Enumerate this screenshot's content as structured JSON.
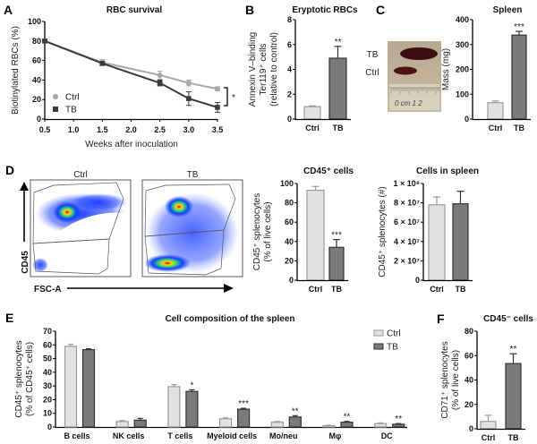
{
  "panels": {
    "a": "A",
    "b": "B",
    "c": "C",
    "d": "D",
    "e": "E",
    "f": "F"
  },
  "photo": {
    "label_tb": "TB",
    "label_ctrl": "Ctrl",
    "ruler_text": "0 cm 1 2"
  },
  "flow": {
    "title_ctrl": "Ctrl",
    "title_tb": "TB",
    "y_axis": "CD45",
    "x_axis": "FSC-A"
  },
  "colors": {
    "ctrl_fill": "#e2e2e2",
    "ctrl_stroke": "#9a9a9a",
    "tb_fill": "#7a7a7a",
    "tb_stroke": "#333333"
  },
  "chart_data": [
    {
      "id": "A",
      "type": "line",
      "title": "RBC survival",
      "xlabel": "Weeks after inoculation",
      "ylabel": "Biotinylated RBCs (%)",
      "xlim": [
        0.5,
        3.5
      ],
      "ylim": [
        0,
        100
      ],
      "xticks": [
        "0.5",
        "1.0",
        "1.5",
        "2.0",
        "2.5",
        "3.0",
        "3.5"
      ],
      "yticks": [
        "0",
        "20",
        "40",
        "60",
        "80",
        "100"
      ],
      "legend": "bottom-left",
      "annotation": "*",
      "x": [
        0.5,
        1.5,
        2.5,
        3.0,
        3.5
      ],
      "series": [
        {
          "name": "Ctrl",
          "values": [
            80,
            58,
            45,
            37,
            31
          ],
          "errors": [
            2,
            3,
            4,
            3,
            2
          ],
          "color": "#a8a8a8"
        },
        {
          "name": "TB",
          "values": [
            80,
            57,
            37,
            21,
            12
          ],
          "errors": [
            2,
            2,
            3,
            7,
            5
          ],
          "color": "#3a3a3a"
        }
      ]
    },
    {
      "id": "B",
      "type": "bar",
      "title": "Eryptotic RBCs",
      "ylabel": [
        "Annexin V–binding",
        "Ter119⁺ cells",
        "(relative to control)"
      ],
      "ylim": [
        0,
        8
      ],
      "yticks": [
        "0",
        "2",
        "4",
        "6",
        "8"
      ],
      "categories": [
        "Ctrl",
        "TB"
      ],
      "values": [
        1.0,
        4.9
      ],
      "errors": [
        0.06,
        0.95
      ],
      "significance": [
        "",
        "**"
      ]
    },
    {
      "id": "C",
      "type": "bar",
      "title": "Spleen",
      "ylabel": [
        "Mass (mg)"
      ],
      "ylim": [
        0,
        400
      ],
      "yticks": [
        "0",
        "100",
        "200",
        "300",
        "400"
      ],
      "categories": [
        "Ctrl",
        "TB"
      ],
      "values": [
        66,
        338
      ],
      "errors": [
        7,
        15
      ],
      "significance": [
        "",
        "***"
      ]
    },
    {
      "id": "D1",
      "type": "bar",
      "title": "CD45⁺ cells",
      "ylabel": [
        "CD45⁺ splenocytes",
        "(% of live cells)"
      ],
      "ylim": [
        0,
        100
      ],
      "yticks": [
        "0",
        "20",
        "40",
        "60",
        "80",
        "100"
      ],
      "categories": [
        "Ctrl",
        "TB"
      ],
      "values": [
        93,
        34
      ],
      "errors": [
        4,
        8
      ],
      "significance": [
        "",
        "***"
      ]
    },
    {
      "id": "D2",
      "type": "bar",
      "title": "Cells in spleen",
      "ylabel": [
        "CD45⁺ splenocytes (#)"
      ],
      "ylim": [
        0,
        100000000
      ],
      "yticks": [
        "0",
        "2 × 10⁷",
        "4 × 10⁷",
        "6 × 10⁷",
        "8 × 10⁷",
        "1 × 10⁸"
      ],
      "categories": [
        "Ctrl",
        "TB"
      ],
      "values": [
        78000000,
        79000000
      ],
      "errors": [
        8000000,
        13000000
      ],
      "significance": [
        "",
        ""
      ]
    },
    {
      "id": "E",
      "type": "bar",
      "title": "Cell composition of the spleen",
      "ylabel": [
        "CD45⁺ splenocytes",
        "(% of CD45⁺ cells)"
      ],
      "ylim": [
        0,
        70
      ],
      "yticks": [
        "0",
        "10",
        "20",
        "30",
        "40",
        "50",
        "60",
        "70"
      ],
      "legend": "top-right",
      "categories": [
        "B cells",
        "NK cells",
        "T cells",
        "Myeloid cells",
        "Mo/neu",
        "Mφ",
        "DC"
      ],
      "series": [
        {
          "name": "Ctrl",
          "values": [
            59,
            4,
            29.5,
            6,
            3.5,
            1,
            2.5
          ],
          "errors": [
            1.5,
            0.7,
            1.5,
            0.7,
            0.5,
            0.3,
            0.5
          ]
        },
        {
          "name": "TB",
          "values": [
            56.5,
            5,
            26,
            13,
            7.3,
            3.5,
            2
          ],
          "errors": [
            0.7,
            1.3,
            1.2,
            0.7,
            1,
            0.6,
            0.5
          ]
        }
      ],
      "significance": [
        "",
        "",
        "*",
        "***",
        "**",
        "**",
        "**"
      ]
    },
    {
      "id": "F",
      "type": "bar",
      "title": "CD45⁻ cells",
      "ylabel": [
        "CD71⁺ splenocytes",
        "(% of live cells)"
      ],
      "ylim": [
        0,
        80
      ],
      "yticks": [
        "0",
        "20",
        "40",
        "60",
        "80"
      ],
      "categories": [
        "Ctrl",
        "TB"
      ],
      "values": [
        6,
        53.5
      ],
      "errors": [
        5,
        8
      ],
      "significance": [
        "",
        "**"
      ]
    }
  ]
}
